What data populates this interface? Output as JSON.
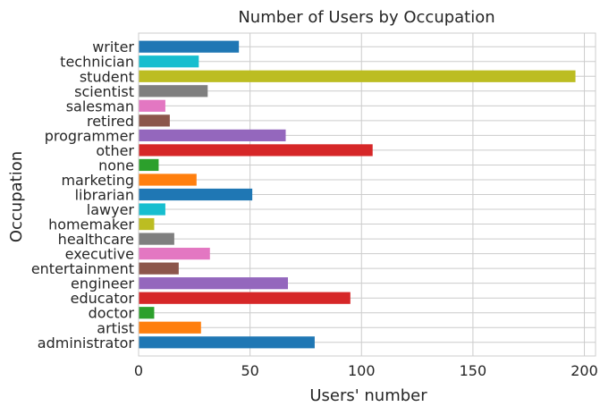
{
  "chart_data": {
    "type": "bar",
    "orientation": "horizontal",
    "title": "Number of Users by Occupation",
    "xlabel": "Users' number",
    "ylabel": "Occupation",
    "xlim": [
      0,
      205
    ],
    "xticks": [
      0,
      50,
      100,
      150,
      200
    ],
    "grid": true,
    "categories": [
      "administrator",
      "artist",
      "doctor",
      "educator",
      "engineer",
      "entertainment",
      "executive",
      "healthcare",
      "homemaker",
      "lawyer",
      "librarian",
      "marketing",
      "none",
      "other",
      "programmer",
      "retired",
      "salesman",
      "scientist",
      "student",
      "technician",
      "writer"
    ],
    "values": [
      79,
      28,
      7,
      95,
      67,
      18,
      32,
      16,
      7,
      12,
      51,
      26,
      9,
      105,
      66,
      14,
      12,
      31,
      196,
      27,
      45
    ],
    "colors": [
      "#1f77b4",
      "#ff7f0e",
      "#2ca02c",
      "#d62728",
      "#9467bd",
      "#8c564b",
      "#e377c2",
      "#7f7f7f",
      "#bcbd22",
      "#17becf",
      "#1f77b4",
      "#ff7f0e",
      "#2ca02c",
      "#d62728",
      "#9467bd",
      "#8c564b",
      "#e377c2",
      "#7f7f7f",
      "#bcbd22",
      "#17becf",
      "#1f77b4"
    ]
  }
}
